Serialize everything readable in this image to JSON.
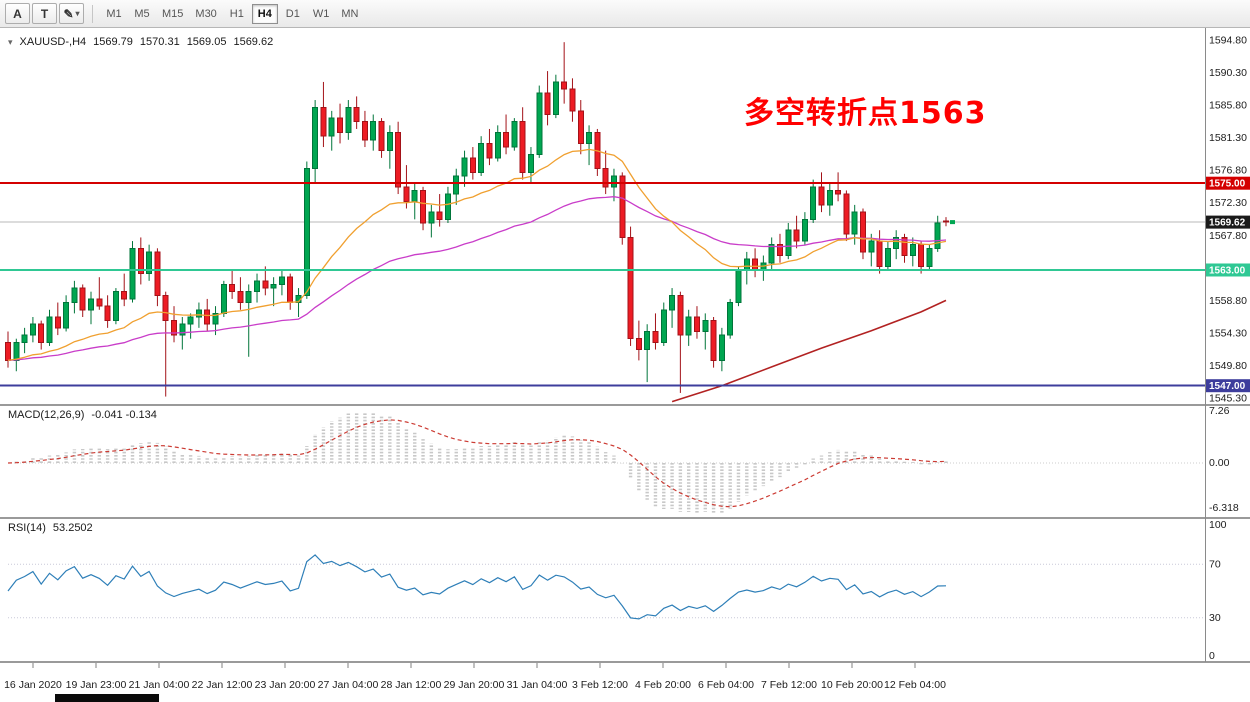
{
  "toolbar": {
    "tools": [
      {
        "id": "annotation-tool",
        "label": "A",
        "has_dropdown": false
      },
      {
        "id": "text-tool",
        "label": "T",
        "has_dropdown": false
      },
      {
        "id": "drawing-tool",
        "label": "",
        "icon": "pencil-icon",
        "has_dropdown": true
      }
    ],
    "timeframes": [
      "M1",
      "M5",
      "M15",
      "M30",
      "H1",
      "H4",
      "D1",
      "W1",
      "MN"
    ],
    "active_timeframe": "H4"
  },
  "header": {
    "marker": "▾",
    "symbol": "XAUUSD-,H4",
    "open": "1569.79",
    "high": "1570.31",
    "low": "1569.05",
    "close": "1569.62"
  },
  "annotation": {
    "text": "多空转折点1563",
    "color": "#ff0000"
  },
  "chart_data": {
    "type": "candlestick",
    "title": "XAUUSD- H4",
    "ylim": [
      1545.3,
      1594.8
    ],
    "price_axis_labels": [
      "1594.80",
      "1590.30",
      "1585.80",
      "1581.30",
      "1576.80",
      "1572.30",
      "1567.80",
      "1563.30",
      "1558.80",
      "1554.30",
      "1549.80",
      "1545.30"
    ],
    "time_labels": [
      "16 Jan 2020",
      "19 Jan 23:00",
      "21 Jan 04:00",
      "22 Jan 12:00",
      "23 Jan 20:00",
      "27 Jan 04:00",
      "28 Jan 12:00",
      "29 Jan 20:00",
      "31 Jan 04:00",
      "3 Feb 12:00",
      "4 Feb 20:00",
      "6 Feb 04:00",
      "7 Feb 12:00",
      "10 Feb 20:00",
      "12 Feb 04:00"
    ],
    "colors": {
      "up": "#00a651",
      "up_border": "#00753a",
      "down": "#ed1c24",
      "down_border": "#a31218"
    },
    "horizontal_lines": [
      {
        "price": 1575.0,
        "label": "1575.00",
        "color": "#d40000"
      },
      {
        "price": 1563.0,
        "label": "1563.00",
        "color": "#2fc894"
      },
      {
        "price": 1547.0,
        "label": "1547.00",
        "color": "#3d3d9c"
      }
    ],
    "current_price": {
      "value": 1569.62,
      "label": "1569.62",
      "color": "#1a1a1a"
    },
    "moving_averages": [
      {
        "name": "fast-ma-orange",
        "color": "#f0a030"
      },
      {
        "name": "slow-ma-magenta",
        "color": "#c93dc9"
      }
    ],
    "trend_line": {
      "color": "#b22222",
      "points": [
        [
          80,
          1544.8
        ],
        [
          86,
          1547.0
        ],
        [
          92,
          1549.6
        ],
        [
          98,
          1552.2
        ],
        [
          104,
          1554.6
        ],
        [
          110,
          1557.2
        ],
        [
          113,
          1558.8
        ]
      ]
    },
    "indicators": [
      {
        "type": "MACD",
        "label": "MACD(12,26,9)",
        "values_text": "-0.041 -0.134",
        "axis_labels": [
          "7.26",
          "0.00",
          "-6.318"
        ],
        "histogram_color": "#c8c8c8",
        "signal_color": "#cc3b33"
      },
      {
        "type": "RSI",
        "label": "RSI(14)",
        "value_text": "53.2502",
        "axis_labels": [
          "100",
          "70",
          "30",
          "0"
        ],
        "levels": [
          70,
          30
        ],
        "color": "#2e7fb8"
      }
    ],
    "ohlc": [
      [
        1553.0,
        1554.5,
        1549.5,
        1550.5
      ],
      [
        1550.5,
        1553.5,
        1549.0,
        1553.0
      ],
      [
        1553.0,
        1555.0,
        1551.5,
        1554.0
      ],
      [
        1554.0,
        1556.5,
        1553.0,
        1555.5
      ],
      [
        1555.5,
        1556.0,
        1552.0,
        1553.0
      ],
      [
        1553.0,
        1557.5,
        1552.5,
        1556.5
      ],
      [
        1556.5,
        1558.5,
        1554.0,
        1555.0
      ],
      [
        1555.0,
        1559.5,
        1554.5,
        1558.5
      ],
      [
        1558.5,
        1561.5,
        1557.0,
        1560.5
      ],
      [
        1560.5,
        1561.0,
        1556.5,
        1557.5
      ],
      [
        1557.5,
        1560.0,
        1555.5,
        1559.0
      ],
      [
        1559.0,
        1562.0,
        1557.5,
        1558.0
      ],
      [
        1558.0,
        1559.5,
        1555.0,
        1556.0
      ],
      [
        1556.0,
        1560.5,
        1555.5,
        1560.0
      ],
      [
        1560.0,
        1562.5,
        1558.0,
        1559.0
      ],
      [
        1559.0,
        1567.0,
        1558.5,
        1566.0
      ],
      [
        1566.0,
        1567.5,
        1561.0,
        1562.5
      ],
      [
        1562.5,
        1566.5,
        1561.5,
        1565.5
      ],
      [
        1565.5,
        1566.0,
        1558.0,
        1559.5
      ],
      [
        1559.5,
        1560.0,
        1545.5,
        1556.0
      ],
      [
        1556.0,
        1558.0,
        1553.0,
        1554.0
      ],
      [
        1554.0,
        1556.5,
        1552.0,
        1555.5
      ],
      [
        1555.5,
        1557.0,
        1553.5,
        1556.5
      ],
      [
        1556.5,
        1558.5,
        1555.0,
        1557.5
      ],
      [
        1557.5,
        1559.0,
        1554.5,
        1555.5
      ],
      [
        1555.5,
        1558.0,
        1554.0,
        1557.0
      ],
      [
        1557.0,
        1561.5,
        1556.5,
        1561.0
      ],
      [
        1561.0,
        1563.0,
        1559.0,
        1560.0
      ],
      [
        1560.0,
        1562.0,
        1557.5,
        1558.5
      ],
      [
        1558.5,
        1561.0,
        1551.0,
        1560.0
      ],
      [
        1560.0,
        1562.5,
        1558.5,
        1561.5
      ],
      [
        1561.5,
        1563.5,
        1559.5,
        1560.5
      ],
      [
        1560.5,
        1562.0,
        1558.0,
        1561.0
      ],
      [
        1561.0,
        1563.0,
        1559.5,
        1562.0
      ],
      [
        1562.0,
        1562.5,
        1557.5,
        1558.5
      ],
      [
        1558.5,
        1560.5,
        1556.5,
        1559.5
      ],
      [
        1559.5,
        1578.0,
        1559.0,
        1577.0
      ],
      [
        1577.0,
        1586.5,
        1575.0,
        1585.5
      ],
      [
        1585.5,
        1589.0,
        1580.0,
        1581.5
      ],
      [
        1581.5,
        1585.0,
        1579.5,
        1584.0
      ],
      [
        1584.0,
        1586.0,
        1580.5,
        1582.0
      ],
      [
        1582.0,
        1586.5,
        1581.0,
        1585.5
      ],
      [
        1585.5,
        1587.0,
        1582.5,
        1583.5
      ],
      [
        1583.5,
        1585.0,
        1580.0,
        1581.0
      ],
      [
        1581.0,
        1584.5,
        1579.5,
        1583.5
      ],
      [
        1583.5,
        1584.0,
        1578.5,
        1579.5
      ],
      [
        1579.5,
        1583.0,
        1577.0,
        1582.0
      ],
      [
        1582.0,
        1583.5,
        1573.5,
        1574.5
      ],
      [
        1574.5,
        1577.5,
        1571.5,
        1572.5
      ],
      [
        1572.5,
        1575.0,
        1570.0,
        1574.0
      ],
      [
        1574.0,
        1574.5,
        1568.5,
        1569.5
      ],
      [
        1569.5,
        1572.0,
        1567.5,
        1571.0
      ],
      [
        1571.0,
        1573.5,
        1569.0,
        1570.0
      ],
      [
        1570.0,
        1574.5,
        1569.5,
        1573.5
      ],
      [
        1573.5,
        1577.0,
        1572.0,
        1576.0
      ],
      [
        1576.0,
        1579.5,
        1574.5,
        1578.5
      ],
      [
        1578.5,
        1580.0,
        1575.5,
        1576.5
      ],
      [
        1576.5,
        1581.5,
        1576.0,
        1580.5
      ],
      [
        1580.5,
        1582.5,
        1577.5,
        1578.5
      ],
      [
        1578.5,
        1583.0,
        1578.0,
        1582.0
      ],
      [
        1582.0,
        1584.5,
        1579.0,
        1580.0
      ],
      [
        1580.0,
        1584.0,
        1579.5,
        1583.5
      ],
      [
        1583.5,
        1585.5,
        1575.5,
        1576.5
      ],
      [
        1576.5,
        1580.0,
        1575.0,
        1579.0
      ],
      [
        1579.0,
        1588.5,
        1578.5,
        1587.5
      ],
      [
        1587.5,
        1590.5,
        1583.0,
        1584.5
      ],
      [
        1584.5,
        1590.0,
        1584.0,
        1589.0
      ],
      [
        1589.0,
        1594.5,
        1586.0,
        1588.0
      ],
      [
        1588.0,
        1589.5,
        1583.5,
        1585.0
      ],
      [
        1585.0,
        1586.5,
        1579.0,
        1580.5
      ],
      [
        1580.5,
        1583.0,
        1577.5,
        1582.0
      ],
      [
        1582.0,
        1582.5,
        1576.0,
        1577.0
      ],
      [
        1577.0,
        1579.5,
        1573.5,
        1574.5
      ],
      [
        1574.5,
        1577.0,
        1572.5,
        1576.0
      ],
      [
        1576.0,
        1576.5,
        1566.5,
        1567.5
      ],
      [
        1567.5,
        1569.0,
        1552.5,
        1553.5
      ],
      [
        1553.5,
        1556.0,
        1550.5,
        1552.0
      ],
      [
        1552.0,
        1555.5,
        1547.5,
        1554.5
      ],
      [
        1554.5,
        1557.0,
        1552.0,
        1553.0
      ],
      [
        1553.0,
        1558.5,
        1552.5,
        1557.5
      ],
      [
        1557.5,
        1560.5,
        1555.0,
        1559.5
      ],
      [
        1559.5,
        1560.0,
        1546.0,
        1554.0
      ],
      [
        1554.0,
        1557.5,
        1552.5,
        1556.5
      ],
      [
        1556.5,
        1558.0,
        1553.5,
        1554.5
      ],
      [
        1554.5,
        1557.0,
        1552.0,
        1556.0
      ],
      [
        1556.0,
        1556.5,
        1549.5,
        1550.5
      ],
      [
        1550.5,
        1555.0,
        1549.0,
        1554.0
      ],
      [
        1554.0,
        1559.0,
        1553.5,
        1558.5
      ],
      [
        1558.5,
        1563.5,
        1558.0,
        1563.0
      ],
      [
        1563.0,
        1565.5,
        1561.0,
        1564.5
      ],
      [
        1564.5,
        1566.0,
        1562.0,
        1563.0
      ],
      [
        1563.0,
        1565.0,
        1561.5,
        1564.0
      ],
      [
        1564.0,
        1567.5,
        1563.0,
        1566.5
      ],
      [
        1566.5,
        1568.0,
        1564.0,
        1565.0
      ],
      [
        1565.0,
        1569.5,
        1564.5,
        1568.5
      ],
      [
        1568.5,
        1570.5,
        1566.0,
        1567.0
      ],
      [
        1567.0,
        1571.0,
        1566.5,
        1570.0
      ],
      [
        1570.0,
        1575.5,
        1569.5,
        1574.5
      ],
      [
        1574.5,
        1576.5,
        1571.0,
        1572.0
      ],
      [
        1572.0,
        1575.0,
        1570.5,
        1574.0
      ],
      [
        1574.0,
        1576.5,
        1572.5,
        1573.5
      ],
      [
        1573.5,
        1574.0,
        1567.0,
        1568.0
      ],
      [
        1568.0,
        1572.0,
        1566.5,
        1571.0
      ],
      [
        1571.0,
        1571.5,
        1564.5,
        1565.5
      ],
      [
        1565.5,
        1568.0,
        1563.5,
        1567.0
      ],
      [
        1567.0,
        1568.5,
        1562.5,
        1563.5
      ],
      [
        1563.5,
        1567.0,
        1563.0,
        1566.0
      ],
      [
        1566.0,
        1568.5,
        1564.5,
        1567.5
      ],
      [
        1567.5,
        1568.0,
        1564.0,
        1565.0
      ],
      [
        1565.0,
        1567.5,
        1563.5,
        1566.5
      ],
      [
        1566.5,
        1567.0,
        1562.5,
        1563.5
      ],
      [
        1563.5,
        1566.5,
        1563.0,
        1566.0
      ],
      [
        1566.0,
        1570.5,
        1565.5,
        1569.5
      ],
      [
        1569.79,
        1570.31,
        1569.05,
        1569.62
      ]
    ]
  }
}
